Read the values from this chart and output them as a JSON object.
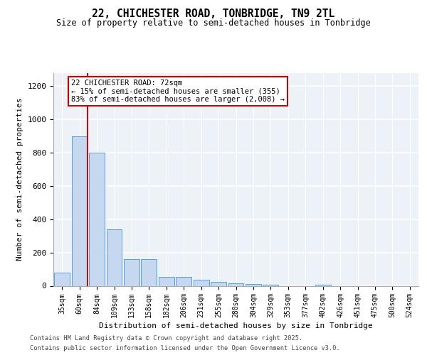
{
  "title_line1": "22, CHICHESTER ROAD, TONBRIDGE, TN9 2TL",
  "title_line2": "Size of property relative to semi-detached houses in Tonbridge",
  "xlabel": "Distribution of semi-detached houses by size in Tonbridge",
  "ylabel": "Number of semi-detached properties",
  "categories": [
    "35sqm",
    "60sqm",
    "84sqm",
    "109sqm",
    "133sqm",
    "158sqm",
    "182sqm",
    "206sqm",
    "231sqm",
    "255sqm",
    "280sqm",
    "304sqm",
    "329sqm",
    "353sqm",
    "377sqm",
    "402sqm",
    "426sqm",
    "451sqm",
    "475sqm",
    "500sqm",
    "524sqm"
  ],
  "values": [
    80,
    900,
    800,
    340,
    160,
    160,
    55,
    55,
    35,
    25,
    15,
    10,
    5,
    0,
    0,
    5,
    0,
    0,
    0,
    0,
    0
  ],
  "bar_color": "#c5d8f0",
  "bar_edge_color": "#5a9fd4",
  "vline_color": "#cc0000",
  "vline_x_index": 1.45,
  "ylim_max": 1280,
  "yticks": [
    0,
    200,
    400,
    600,
    800,
    1000,
    1200
  ],
  "background_color": "#edf2f9",
  "grid_color": "#ffffff",
  "annotation_text_line1": "22 CHICHESTER ROAD: 72sqm",
  "annotation_text_line2": "← 15% of semi-detached houses are smaller (355)",
  "annotation_text_line3": "83% of semi-detached houses are larger (2,008) →",
  "footnote1": "Contains HM Land Registry data © Crown copyright and database right 2025.",
  "footnote2": "Contains public sector information licensed under the Open Government Licence v3.0."
}
